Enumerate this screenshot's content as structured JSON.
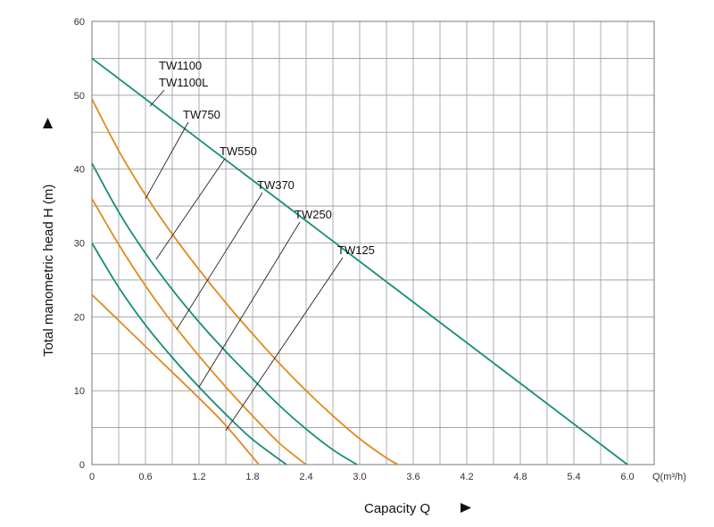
{
  "chart_data": {
    "type": "line",
    "xlabel": "Capacity  Q",
    "ylabel": "Total manometric head H (m)",
    "x_unit_label": "Q(m³/h)",
    "x_ticks": [
      "0",
      "0.6",
      "1.2",
      "1.8",
      "2.4",
      "3.0",
      "3.6",
      "4.2",
      "4.8",
      "5.4",
      "6.0"
    ],
    "y_ticks": [
      "0",
      "10",
      "20",
      "30",
      "40",
      "50",
      "60"
    ],
    "xlim": [
      0,
      6.3
    ],
    "ylim": [
      0,
      60
    ],
    "grid": true,
    "colors": {
      "green": "#1a8c7a",
      "orange": "#e08a1e",
      "grid": "#999999"
    },
    "series": [
      {
        "name": "TW1100\nTW1100L",
        "color": "green",
        "x": [
          0,
          1.2,
          2.4,
          3.6,
          4.8,
          6.0
        ],
        "y": [
          55,
          44,
          33,
          22,
          11,
          0
        ]
      },
      {
        "name": "TW750",
        "color": "orange",
        "x": [
          0,
          0.3,
          0.6,
          0.9,
          1.2,
          1.5,
          1.8,
          2.1,
          2.4,
          2.7,
          3.0,
          3.3,
          3.43
        ],
        "y": [
          49.5,
          42.5,
          36.5,
          31.2,
          26.4,
          21.9,
          17.7,
          13.7,
          10.0,
          6.6,
          3.5,
          0.9,
          0
        ]
      },
      {
        "name": "TW550",
        "color": "green",
        "x": [
          0,
          0.3,
          0.6,
          0.9,
          1.2,
          1.5,
          1.8,
          2.1,
          2.4,
          2.7,
          2.97
        ],
        "y": [
          40.8,
          34.2,
          28.6,
          23.7,
          19.3,
          15.3,
          11.6,
          8.0,
          4.8,
          2.0,
          0
        ]
      },
      {
        "name": "TW370",
        "color": "orange",
        "x": [
          0,
          0.3,
          0.6,
          0.9,
          1.2,
          1.5,
          1.8,
          2.1,
          2.4
        ],
        "y": [
          36.0,
          29.8,
          24.2,
          19.2,
          14.7,
          10.5,
          6.6,
          2.9,
          0
        ]
      },
      {
        "name": "TW250",
        "color": "green",
        "x": [
          0,
          0.3,
          0.6,
          0.9,
          1.2,
          1.5,
          1.8,
          2.18
        ],
        "y": [
          30.0,
          24.0,
          18.9,
          14.5,
          10.5,
          6.8,
          3.4,
          0
        ]
      },
      {
        "name": "TW125",
        "color": "orange",
        "x": [
          0,
          0.6,
          1.2,
          1.5,
          1.87
        ],
        "y": [
          23.0,
          16.0,
          9.0,
          5.3,
          0
        ]
      }
    ]
  }
}
